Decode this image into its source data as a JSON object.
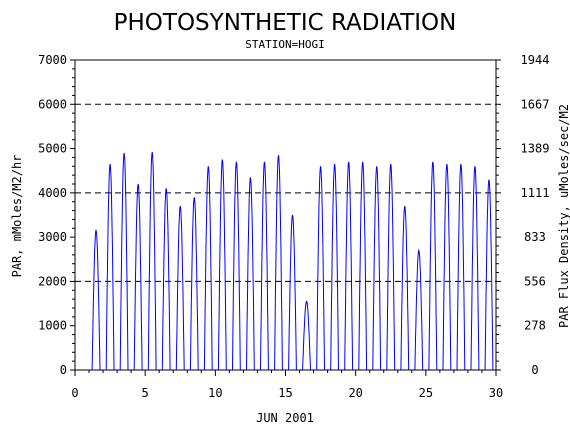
{
  "chart_data": {
    "type": "line",
    "title": "PHOTOSYNTHETIC RADIATION",
    "subtitle": "STATION=HOGI",
    "xlabel": "JUN 2001",
    "ylabel": "PAR, mMoles/M2/hr",
    "y2label": "PAR Flux Density, uMoles/sec/M2",
    "xlim": [
      0,
      30
    ],
    "ylim": [
      0,
      7000
    ],
    "y2lim": [
      0,
      1944
    ],
    "x_ticks": [
      "0",
      "5",
      "10",
      "15",
      "20",
      "25",
      "30"
    ],
    "y_ticks": [
      "0",
      "1000",
      "2000",
      "3000",
      "4000",
      "5000",
      "6000",
      "7000"
    ],
    "y2_ticks": [
      "0",
      "278",
      "556",
      "833",
      "1111",
      "1389",
      "1667",
      "1944"
    ],
    "grid": "dashed horizontal lines at 2000, 4000, 6000",
    "series_color": "#0000ff",
    "daily_peaks": [
      {
        "day": 1,
        "peak": 3150
      },
      {
        "day": 2,
        "peak": 4650
      },
      {
        "day": 3,
        "peak": 4900
      },
      {
        "day": 4,
        "peak": 4200
      },
      {
        "day": 5,
        "peak": 4920
      },
      {
        "day": 6,
        "peak": 4100
      },
      {
        "day": 7,
        "peak": 3700
      },
      {
        "day": 8,
        "peak": 3900
      },
      {
        "day": 9,
        "peak": 4600
      },
      {
        "day": 10,
        "peak": 4750
      },
      {
        "day": 11,
        "peak": 4700
      },
      {
        "day": 12,
        "peak": 4350
      },
      {
        "day": 13,
        "peak": 4700
      },
      {
        "day": 14,
        "peak": 4850
      },
      {
        "day": 15,
        "peak": 3500
      },
      {
        "day": 16,
        "peak": 1550
      },
      {
        "day": 17,
        "peak": 4600
      },
      {
        "day": 18,
        "peak": 4650
      },
      {
        "day": 19,
        "peak": 4700
      },
      {
        "day": 20,
        "peak": 4700
      },
      {
        "day": 21,
        "peak": 4600
      },
      {
        "day": 22,
        "peak": 4650
      },
      {
        "day": 23,
        "peak": 3700
      },
      {
        "day": 24,
        "peak": 2700
      },
      {
        "day": 25,
        "peak": 4700
      },
      {
        "day": 26,
        "peak": 4650
      },
      {
        "day": 27,
        "peak": 4650
      },
      {
        "day": 28,
        "peak": 4600
      },
      {
        "day": 29,
        "peak": 4300
      }
    ]
  }
}
